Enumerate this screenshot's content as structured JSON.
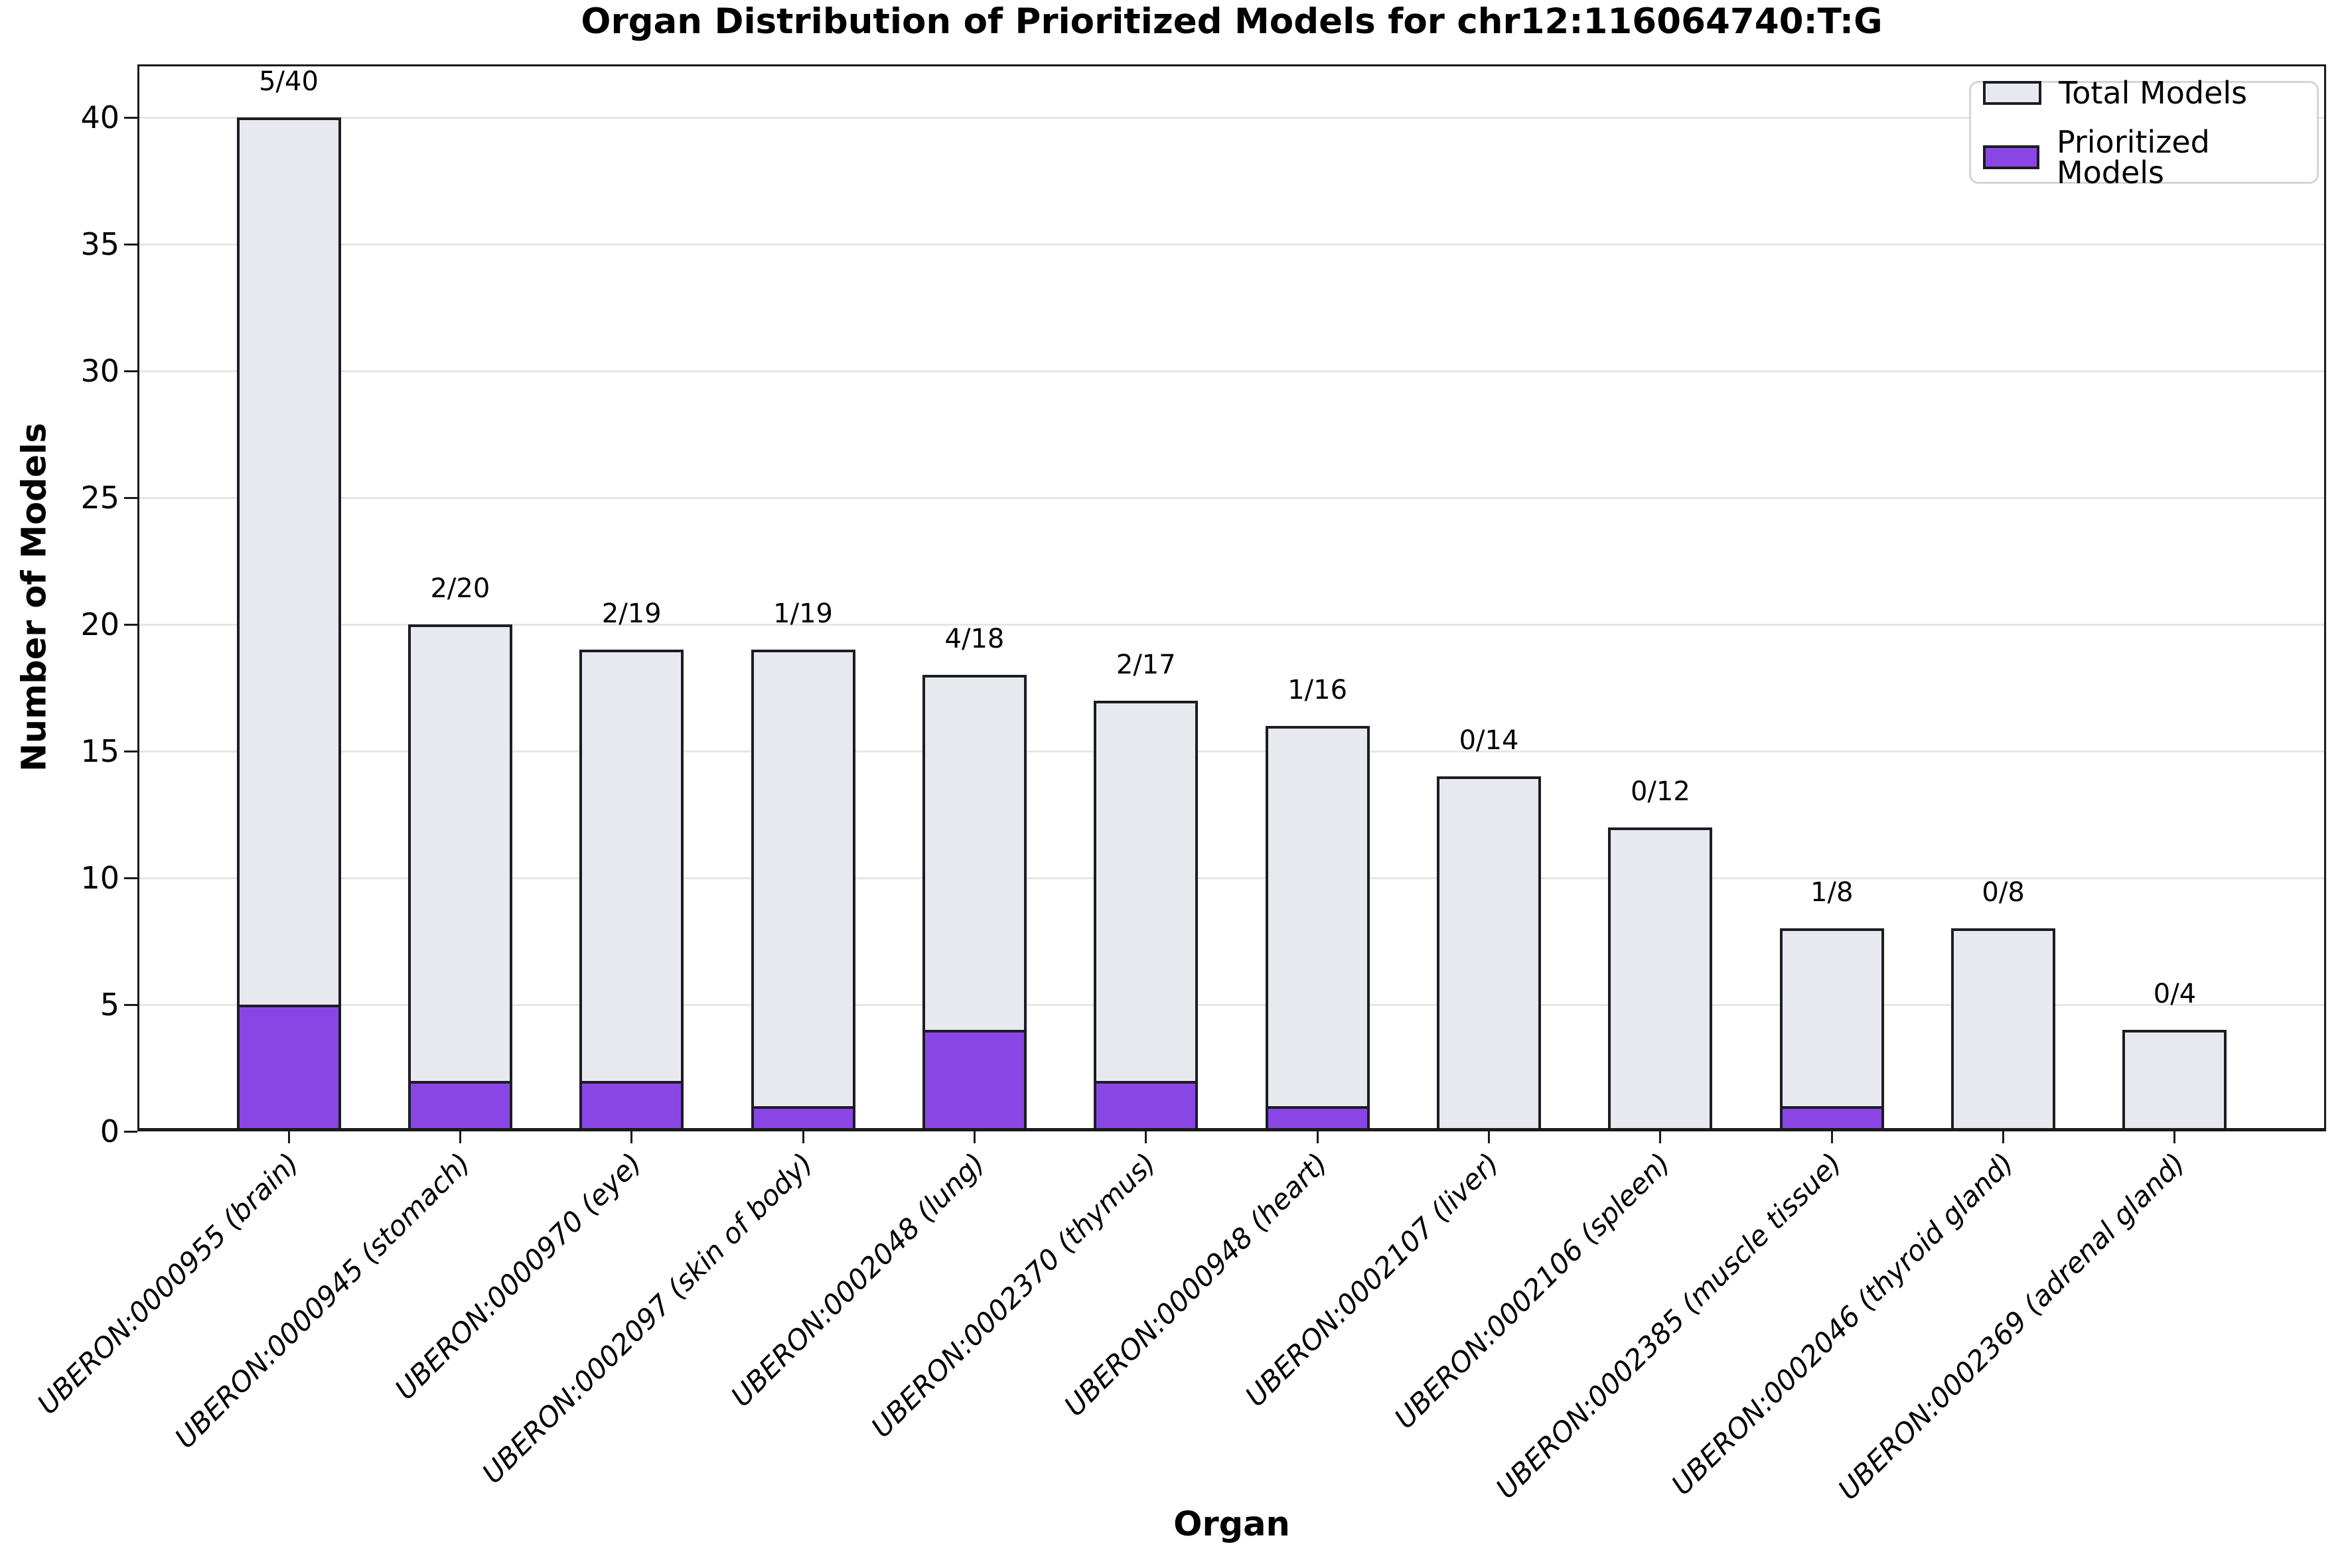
{
  "title": "Organ Distribution of Prioritized Models for chr12:116064740:T:G",
  "colors": {
    "total_fill": "#E8E9EE",
    "prioritized_fill": "#8A46E4",
    "bar_edge": "#1C1C24",
    "grid": "#E6E6E6",
    "spine": "#1A1A1A",
    "legend_border": "#D5D5D5",
    "background": "#FFFFFF"
  },
  "chart_data": {
    "type": "bar",
    "title": "Organ Distribution of Prioritized Models for chr12:116064740:T:G",
    "xlabel": "Organ",
    "ylabel": "Number of Models",
    "ylim": [
      0,
      42
    ],
    "yticks": [
      0,
      5,
      10,
      15,
      20,
      25,
      30,
      35,
      40
    ],
    "grid": "horizontal",
    "legend_position": "upper right",
    "categories": [
      "UBERON:0000955 (brain)",
      "UBERON:0000945 (stomach)",
      "UBERON:0000970 (eye)",
      "UBERON:0002097 (skin of body)",
      "UBERON:0002048 (lung)",
      "UBERON:0002370 (thymus)",
      "UBERON:0000948 (heart)",
      "UBERON:0002107 (liver)",
      "UBERON:0002106 (spleen)",
      "UBERON:0002385 (muscle tissue)",
      "UBERON:0002046 (thyroid gland)",
      "UBERON:0002369 (adrenal gland)"
    ],
    "series": [
      {
        "name": "Total Models",
        "color": "#E8E9EE",
        "values": [
          40,
          20,
          19,
          19,
          18,
          17,
          16,
          14,
          12,
          8,
          8,
          4
        ]
      },
      {
        "name": "Prioritized Models",
        "color": "#8A46E4",
        "values": [
          5,
          2,
          2,
          1,
          4,
          2,
          1,
          0,
          0,
          1,
          0,
          0
        ]
      }
    ],
    "bar_labels": [
      "5/40",
      "2/20",
      "2/19",
      "1/19",
      "4/18",
      "2/17",
      "1/16",
      "0/14",
      "0/12",
      "1/8",
      "0/8",
      "0/4"
    ]
  }
}
